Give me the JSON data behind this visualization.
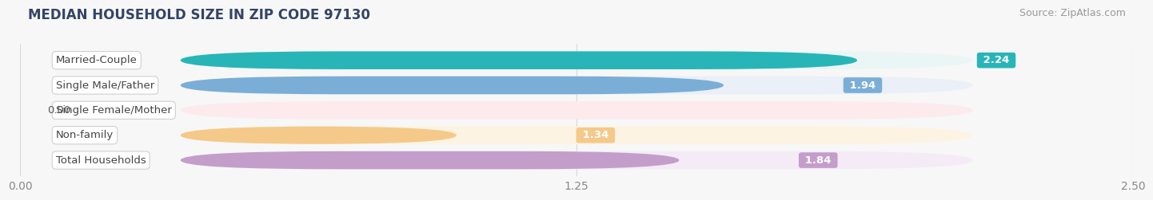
{
  "title": "MEDIAN HOUSEHOLD SIZE IN ZIP CODE 97130",
  "source": "Source: ZipAtlas.com",
  "categories": [
    "Married-Couple",
    "Single Male/Father",
    "Single Female/Mother",
    "Non-family",
    "Total Households"
  ],
  "values": [
    2.24,
    1.94,
    0.0,
    1.34,
    1.84
  ],
  "bar_colors": [
    "#28b5b8",
    "#7aaed6",
    "#f4a0b5",
    "#f5c98a",
    "#c49eca"
  ],
  "bar_bg_colors": [
    "#eaf6f6",
    "#eaeff8",
    "#fceaed",
    "#fdf3e3",
    "#f4ebf7"
  ],
  "value_labels": [
    "2.24",
    "1.94",
    "0.00",
    "1.34",
    "1.84"
  ],
  "xlim": [
    0,
    2.5
  ],
  "xticks": [
    0.0,
    1.25,
    2.5
  ],
  "xtick_labels": [
    "0.00",
    "1.25",
    "2.50"
  ],
  "title_fontsize": 12,
  "source_fontsize": 9,
  "label_fontsize": 9.5,
  "value_fontsize": 9.5,
  "tick_fontsize": 10,
  "background_color": "#f7f7f7",
  "bar_height": 0.72,
  "label_text_color": "#444444",
  "title_color": "#334466",
  "value_inside_color": "#ffffff",
  "value_outside_color": "#555555",
  "grid_color": "#d8d8d8",
  "source_color": "#999999"
}
